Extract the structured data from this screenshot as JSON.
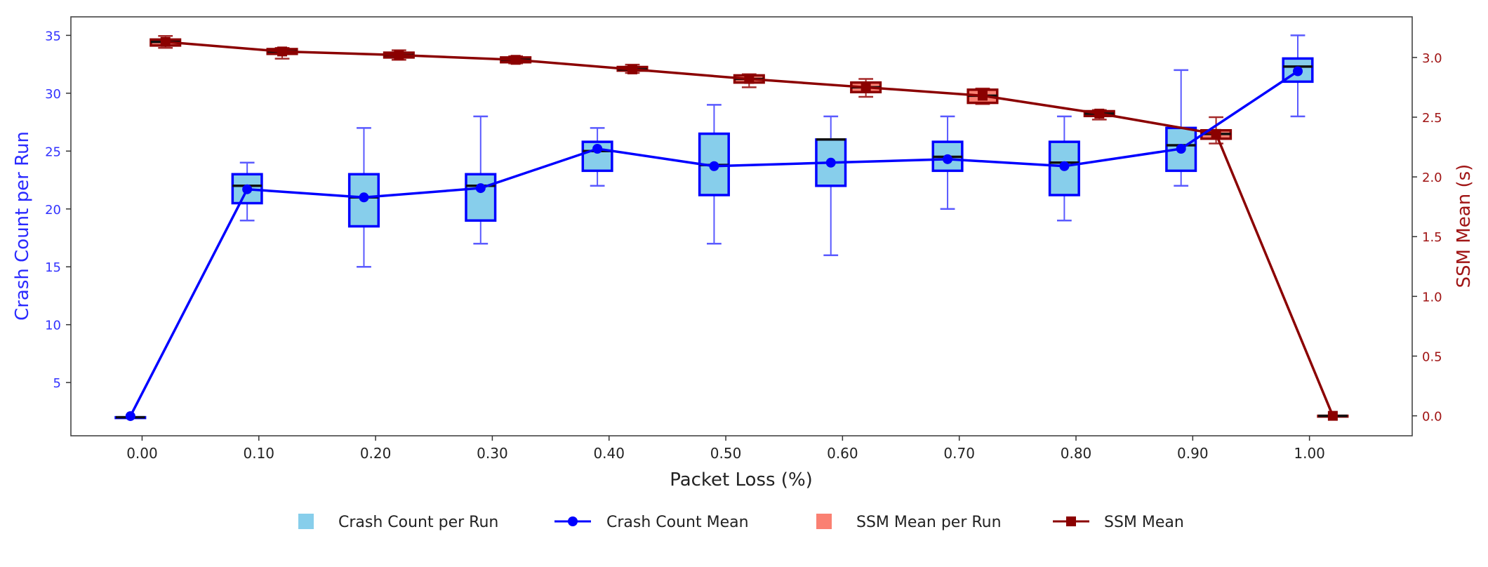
{
  "chart_data": {
    "type": "box+line",
    "xlabel": "Packet Loss (%)",
    "ylabel_left": "Crash Count per Run",
    "ylabel_right": "SSM Mean (s)",
    "x": [
      0.0,
      0.1,
      0.2,
      0.3,
      0.4,
      0.5,
      0.6,
      0.7,
      0.8,
      0.9,
      1.0
    ],
    "x_tick_labels": [
      "0.00",
      "0.10",
      "0.20",
      "0.30",
      "0.40",
      "0.50",
      "0.60",
      "0.70",
      "0.80",
      "0.90",
      "1.00"
    ],
    "xlim": [
      -0.061,
      1.088
    ],
    "ylim_left": [
      0.4,
      36.6
    ],
    "ylim_right": [
      -0.167,
      3.34
    ],
    "y_left_ticks": [
      5,
      10,
      15,
      20,
      25,
      30,
      35
    ],
    "y_right_ticks": [
      "0.0",
      "0.5",
      "1.0",
      "1.5",
      "2.0",
      "2.5",
      "3.0"
    ],
    "grid": false,
    "legend_position": "bottom",
    "colors": {
      "crash_box_fill": "#87ceeb",
      "crash_line": "#0000ff",
      "crash_whisker": "#5a5aff",
      "ssm_box_fill": "#fa8072",
      "ssm_line": "#8b0000",
      "left_axis_text": "#3333ff",
      "right_axis_text": "#a01515"
    },
    "series": [
      {
        "name": "Crash Count per Run",
        "kind": "box",
        "axis": "left",
        "boxes": [
          {
            "whislo": 2,
            "q1": 2,
            "med": 2,
            "q3": 2,
            "whishi": 2
          },
          {
            "whislo": 19,
            "q1": 20.5,
            "med": 22,
            "q3": 23,
            "whishi": 24
          },
          {
            "whislo": 15,
            "q1": 18.5,
            "med": 21,
            "q3": 23,
            "whishi": 27
          },
          {
            "whislo": 17,
            "q1": 19,
            "med": 22,
            "q3": 23,
            "whishi": 28
          },
          {
            "whislo": 22,
            "q1": 23.3,
            "med": 25,
            "q3": 25.8,
            "whishi": 27
          },
          {
            "whislo": 17,
            "q1": 21.2,
            "med": 23.8,
            "q3": 26.5,
            "whishi": 29
          },
          {
            "whislo": 16,
            "q1": 22,
            "med": 26,
            "q3": 26,
            "whishi": 28
          },
          {
            "whislo": 20,
            "q1": 23.3,
            "med": 24.5,
            "q3": 25.8,
            "whishi": 28
          },
          {
            "whislo": 19,
            "q1": 21.2,
            "med": 24,
            "q3": 25.8,
            "whishi": 28
          },
          {
            "whislo": 22,
            "q1": 23.3,
            "med": 25.5,
            "q3": 27,
            "whishi": 32
          },
          {
            "whislo": 28,
            "q1": 31,
            "med": 32.3,
            "q3": 33,
            "whishi": 35
          }
        ]
      },
      {
        "name": "Crash Count Mean",
        "kind": "line",
        "axis": "left",
        "values": [
          2.1,
          21.7,
          21.0,
          21.8,
          25.2,
          23.7,
          24.0,
          24.3,
          23.7,
          25.2,
          31.9
        ]
      },
      {
        "name": "SSM Mean per Run",
        "kind": "box",
        "axis": "right",
        "boxes": [
          {
            "whislo": 3.08,
            "q1": 3.1,
            "med": 3.13,
            "q3": 3.15,
            "whishi": 3.18
          },
          {
            "whislo": 2.99,
            "q1": 3.03,
            "med": 3.05,
            "q3": 3.07,
            "whishi": 3.08
          },
          {
            "whislo": 2.98,
            "q1": 3.0,
            "med": 3.02,
            "q3": 3.04,
            "whishi": 3.06
          },
          {
            "whislo": 2.95,
            "q1": 2.96,
            "med": 2.98,
            "q3": 3.0,
            "whishi": 3.01
          },
          {
            "whislo": 2.87,
            "q1": 2.89,
            "med": 2.9,
            "q3": 2.92,
            "whishi": 2.94
          },
          {
            "whislo": 2.75,
            "q1": 2.79,
            "med": 2.82,
            "q3": 2.85,
            "whishi": 2.86
          },
          {
            "whislo": 2.67,
            "q1": 2.71,
            "med": 2.75,
            "q3": 2.79,
            "whishi": 2.82
          },
          {
            "whislo": 2.61,
            "q1": 2.62,
            "med": 2.68,
            "q3": 2.73,
            "whishi": 2.74
          },
          {
            "whislo": 2.48,
            "q1": 2.51,
            "med": 2.53,
            "q3": 2.55,
            "whishi": 2.56
          },
          {
            "whislo": 2.28,
            "q1": 2.32,
            "med": 2.36,
            "q3": 2.39,
            "whishi": 2.5
          },
          {
            "whislo": 0,
            "q1": 0,
            "med": 0,
            "q3": 0,
            "whishi": 0
          }
        ]
      },
      {
        "name": "SSM Mean",
        "kind": "line",
        "axis": "right",
        "values": [
          3.13,
          3.05,
          3.02,
          2.98,
          2.9,
          2.82,
          2.75,
          2.68,
          2.53,
          2.36,
          0.0
        ]
      }
    ],
    "legend": [
      "Crash Count per Run",
      "Crash Count Mean",
      "SSM Mean per Run",
      "SSM Mean"
    ]
  }
}
